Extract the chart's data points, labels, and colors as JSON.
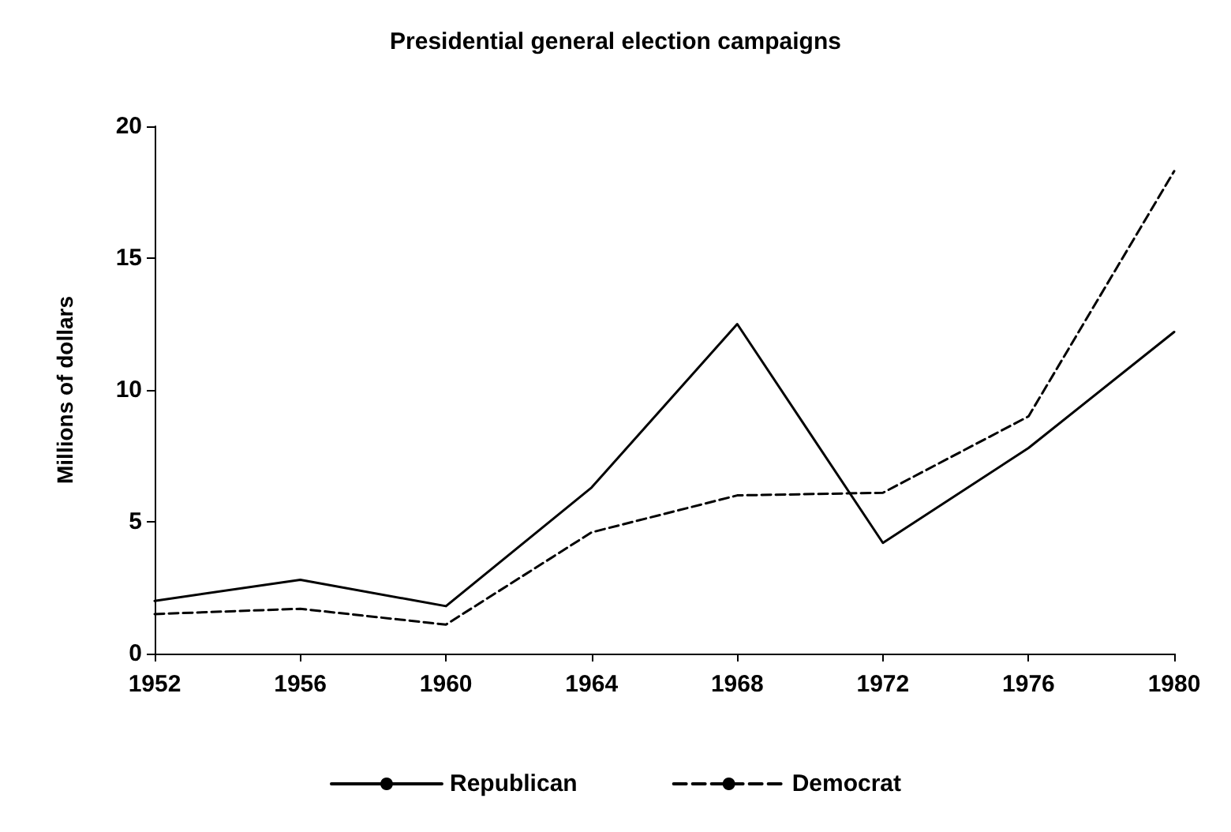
{
  "chart_data": {
    "type": "line",
    "title": "Presidential general election campaigns",
    "ylabel": "Millions of dollars",
    "categories": [
      "1952",
      "1956",
      "1960",
      "1964",
      "1968",
      "1972",
      "1976",
      "1980"
    ],
    "series": [
      {
        "name": "Republican",
        "color": "#000000",
        "line_style": "solid",
        "values": [
          2.0,
          2.8,
          1.8,
          6.3,
          12.5,
          4.2,
          7.8,
          12.2
        ]
      },
      {
        "name": "Democrat",
        "color": "#000000",
        "line_style": "dashed",
        "values": [
          1.5,
          1.7,
          1.1,
          4.6,
          6.0,
          6.1,
          9.0,
          18.3
        ]
      }
    ],
    "ylim": [
      0,
      20
    ],
    "yticks": [
      0,
      5,
      10,
      15,
      20
    ],
    "grid": false,
    "legend": "bottom",
    "marker": "none"
  }
}
